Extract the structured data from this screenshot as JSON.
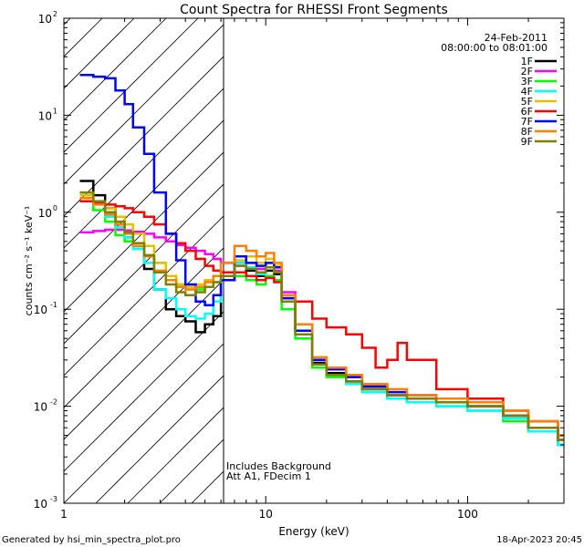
{
  "chart_data": {
    "type": "line",
    "title": "Count Spectra for RHESSI Front Segments",
    "xlabel": "Energy (keV)",
    "ylabel": "counts cm⁻² s⁻¹ keV⁻¹",
    "xscale": "log",
    "yscale": "log",
    "xlim": [
      1,
      300
    ],
    "ylim": [
      0.001,
      100
    ],
    "x_ticks": [
      {
        "value": 1,
        "label": "1"
      },
      {
        "value": 10,
        "label": "10"
      },
      {
        "value": 100,
        "label": "100"
      }
    ],
    "y_ticks": [
      {
        "value": 0.001,
        "base": "10",
        "exp": "-3"
      },
      {
        "value": 0.01,
        "base": "10",
        "exp": "-2"
      },
      {
        "value": 0.1,
        "base": "10",
        "exp": "-1"
      },
      {
        "value": 1,
        "base": "10",
        "exp": "0"
      },
      {
        "value": 10,
        "base": "10",
        "exp": "1"
      },
      {
        "value": 100,
        "base": "10",
        "exp": "2"
      }
    ],
    "shaded_region": {
      "x_min": 1,
      "x_max": 6,
      "pattern": "diagonal hatch"
    },
    "date": "24-Feb-2011",
    "time_range": "08:00:00 to 08:01:00",
    "annotations": [
      "Includes Background",
      "Att A1, FDecim  1"
    ],
    "legend_position": "top-right",
    "series": [
      {
        "name": "1F",
        "color": "#000000",
        "x": [
          1.2,
          1.4,
          1.6,
          1.8,
          2.0,
          2.2,
          2.5,
          2.8,
          3.2,
          3.6,
          4.0,
          4.5,
          5.0,
          5.5,
          6.0,
          7.0,
          8.0,
          9.0,
          10.0,
          11.0,
          12.0,
          14.0,
          17.0,
          20.0,
          25.0,
          30.0,
          40.0,
          50.0,
          70.0,
          100.0,
          150.0,
          200.0,
          280.0
        ],
        "y": [
          2.1,
          1.5,
          1.1,
          0.75,
          0.55,
          0.42,
          0.26,
          0.16,
          0.1,
          0.085,
          0.075,
          0.058,
          0.07,
          0.085,
          0.2,
          0.3,
          0.25,
          0.22,
          0.25,
          0.23,
          0.12,
          0.06,
          0.028,
          0.022,
          0.018,
          0.015,
          0.013,
          0.012,
          0.011,
          0.01,
          0.008,
          0.006,
          0.004
        ]
      },
      {
        "name": "2F",
        "color": "#ff00ff",
        "x": [
          1.2,
          1.4,
          1.6,
          1.8,
          2.0,
          2.2,
          2.5,
          2.8,
          3.2,
          3.6,
          4.0,
          4.5,
          5.0,
          5.5,
          6.0,
          7.0,
          8.0,
          9.0,
          10.0,
          11.0,
          12.0,
          14.0,
          17.0,
          20.0,
          25.0,
          30.0,
          40.0,
          50.0,
          70.0,
          100.0,
          150.0,
          200.0,
          280.0
        ],
        "y": [
          0.62,
          0.64,
          0.66,
          0.66,
          0.65,
          0.63,
          0.6,
          0.55,
          0.5,
          0.46,
          0.43,
          0.4,
          0.37,
          0.33,
          0.3,
          0.28,
          0.27,
          0.26,
          0.27,
          0.25,
          0.15,
          0.07,
          0.03,
          0.024,
          0.02,
          0.016,
          0.013,
          0.012,
          0.011,
          0.01,
          0.008,
          0.006,
          0.004
        ]
      },
      {
        "name": "3F",
        "color": "#00ff00",
        "x": [
          1.2,
          1.4,
          1.6,
          1.8,
          2.0,
          2.2,
          2.5,
          2.8,
          3.2,
          3.6,
          4.0,
          4.5,
          5.0,
          5.5,
          6.0,
          7.0,
          8.0,
          9.0,
          10.0,
          11.0,
          12.0,
          14.0,
          17.0,
          20.0,
          25.0,
          30.0,
          40.0,
          50.0,
          70.0,
          100.0,
          150.0,
          200.0,
          280.0
        ],
        "y": [
          1.3,
          1.05,
          0.8,
          0.58,
          0.5,
          0.42,
          0.36,
          0.3,
          0.22,
          0.18,
          0.16,
          0.16,
          0.17,
          0.19,
          0.2,
          0.22,
          0.2,
          0.18,
          0.22,
          0.2,
          0.1,
          0.05,
          0.025,
          0.02,
          0.017,
          0.014,
          0.012,
          0.011,
          0.01,
          0.009,
          0.007,
          0.0055,
          0.004
        ]
      },
      {
        "name": "4F",
        "color": "#00ffff",
        "x": [
          1.2,
          1.4,
          1.6,
          1.8,
          2.0,
          2.2,
          2.5,
          2.8,
          3.2,
          3.6,
          4.0,
          4.5,
          5.0,
          5.5,
          6.0,
          7.0,
          8.0,
          9.0,
          10.0,
          11.0,
          12.0,
          14.0,
          17.0,
          20.0,
          25.0,
          30.0,
          40.0,
          50.0,
          70.0,
          100.0,
          150.0,
          200.0,
          280.0
        ],
        "y": [
          1.5,
          1.2,
          0.9,
          0.7,
          0.55,
          0.42,
          0.3,
          0.16,
          0.13,
          0.1,
          0.085,
          0.08,
          0.09,
          0.12,
          0.22,
          0.3,
          0.27,
          0.23,
          0.27,
          0.24,
          0.12,
          0.06,
          0.027,
          0.021,
          0.017,
          0.014,
          0.012,
          0.011,
          0.01,
          0.009,
          0.0075,
          0.0055,
          0.004
        ]
      },
      {
        "name": "5F",
        "color": "#e0c000",
        "x": [
          1.2,
          1.4,
          1.6,
          1.8,
          2.0,
          2.2,
          2.5,
          2.8,
          3.2,
          3.6,
          4.0,
          4.5,
          5.0,
          5.5,
          6.0,
          7.0,
          8.0,
          9.0,
          10.0,
          11.0,
          12.0,
          14.0,
          17.0,
          20.0,
          25.0,
          30.0,
          40.0,
          50.0,
          70.0,
          100.0,
          150.0,
          200.0,
          280.0
        ],
        "y": [
          1.5,
          1.3,
          1.1,
          0.9,
          0.75,
          0.6,
          0.45,
          0.3,
          0.22,
          0.18,
          0.17,
          0.18,
          0.2,
          0.22,
          0.24,
          0.32,
          0.35,
          0.3,
          0.33,
          0.28,
          0.13,
          0.06,
          0.03,
          0.024,
          0.02,
          0.016,
          0.014,
          0.012,
          0.011,
          0.01,
          0.008,
          0.006,
          0.0045
        ]
      },
      {
        "name": "6F",
        "color": "#ff0000",
        "x": [
          1.2,
          1.4,
          1.6,
          1.8,
          2.0,
          2.2,
          2.5,
          2.8,
          3.2,
          3.6,
          4.0,
          4.5,
          5.0,
          5.5,
          6.0,
          7.0,
          8.0,
          9.0,
          10.0,
          11.0,
          12.0,
          14.0,
          17.0,
          20.0,
          25.0,
          30.0,
          35.0,
          40.0,
          45.0,
          50.0,
          70.0,
          100.0,
          150.0,
          200.0,
          280.0
        ],
        "y": [
          1.3,
          1.25,
          1.2,
          1.15,
          1.1,
          1.0,
          0.9,
          0.75,
          0.6,
          0.48,
          0.4,
          0.33,
          0.28,
          0.25,
          0.24,
          0.24,
          0.22,
          0.2,
          0.21,
          0.19,
          0.13,
          0.12,
          0.08,
          0.065,
          0.055,
          0.04,
          0.025,
          0.03,
          0.045,
          0.03,
          0.015,
          0.012,
          0.009,
          0.007,
          0.005
        ]
      },
      {
        "name": "7F",
        "color": "#0000ff",
        "x": [
          1.2,
          1.4,
          1.6,
          1.8,
          2.0,
          2.2,
          2.5,
          2.8,
          3.2,
          3.6,
          4.0,
          4.5,
          5.0,
          5.5,
          6.0,
          7.0,
          8.0,
          9.0,
          10.0,
          11.0,
          12.0,
          14.0,
          17.0,
          20.0,
          25.0,
          30.0,
          40.0,
          50.0,
          70.0,
          100.0,
          150.0,
          200.0,
          280.0
        ],
        "y": [
          26,
          25,
          24,
          18,
          13,
          7.5,
          4.0,
          1.6,
          0.6,
          0.32,
          0.18,
          0.12,
          0.11,
          0.14,
          0.2,
          0.35,
          0.3,
          0.28,
          0.3,
          0.27,
          0.13,
          0.06,
          0.03,
          0.024,
          0.02,
          0.016,
          0.014,
          0.013,
          0.012,
          0.01,
          0.008,
          0.006,
          0.0045
        ]
      },
      {
        "name": "8F",
        "color": "#ff8000",
        "x": [
          1.2,
          1.4,
          1.6,
          1.8,
          2.0,
          2.2,
          2.5,
          2.8,
          3.2,
          3.6,
          4.0,
          4.5,
          5.0,
          5.5,
          6.0,
          7.0,
          8.0,
          9.0,
          10.0,
          11.0,
          12.0,
          14.0,
          17.0,
          20.0,
          25.0,
          30.0,
          40.0,
          50.0,
          70.0,
          100.0,
          150.0,
          200.0,
          280.0
        ],
        "y": [
          1.4,
          1.2,
          0.95,
          0.75,
          0.6,
          0.45,
          0.35,
          0.25,
          0.2,
          0.17,
          0.16,
          0.17,
          0.19,
          0.22,
          0.3,
          0.45,
          0.4,
          0.35,
          0.38,
          0.3,
          0.14,
          0.07,
          0.032,
          0.025,
          0.021,
          0.017,
          0.015,
          0.013,
          0.012,
          0.011,
          0.009,
          0.007,
          0.005
        ]
      },
      {
        "name": "9F",
        "color": "#808000",
        "x": [
          1.2,
          1.4,
          1.6,
          1.8,
          2.0,
          2.2,
          2.5,
          2.8,
          3.2,
          3.6,
          4.0,
          4.5,
          5.0,
          5.5,
          6.0,
          7.0,
          8.0,
          9.0,
          10.0,
          11.0,
          12.0,
          14.0,
          17.0,
          20.0,
          25.0,
          30.0,
          40.0,
          50.0,
          70.0,
          100.0,
          150.0,
          200.0,
          280.0
        ],
        "y": [
          1.6,
          1.3,
          1.0,
          0.8,
          0.62,
          0.48,
          0.36,
          0.24,
          0.18,
          0.15,
          0.14,
          0.15,
          0.17,
          0.19,
          0.22,
          0.28,
          0.26,
          0.24,
          0.27,
          0.24,
          0.12,
          0.055,
          0.027,
          0.021,
          0.018,
          0.015,
          0.013,
          0.012,
          0.011,
          0.01,
          0.008,
          0.006,
          0.0045
        ]
      }
    ]
  },
  "footer": {
    "generated_by": "Generated by hsi_min_spectra_plot.pro",
    "timestamp": "18-Apr-2023 20:45"
  }
}
